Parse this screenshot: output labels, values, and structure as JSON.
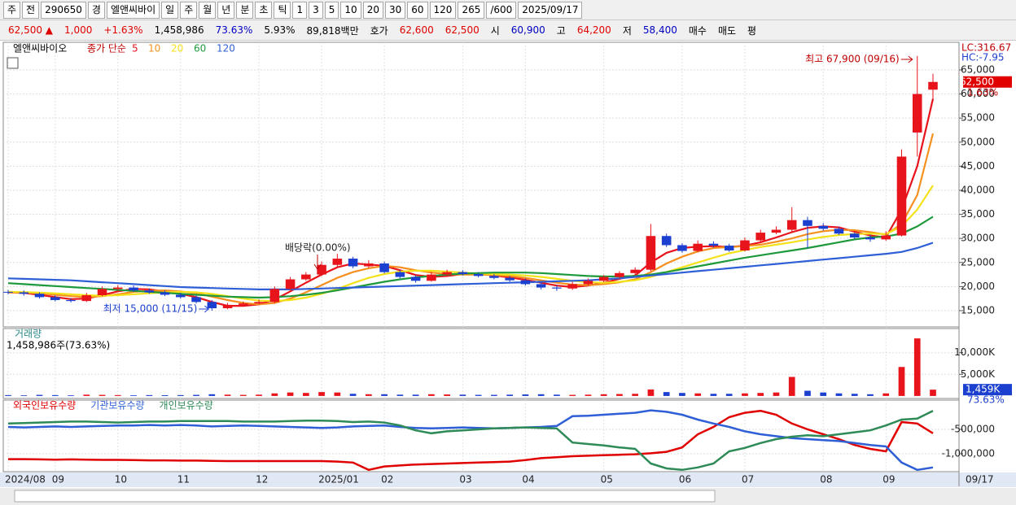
{
  "toolbar": [
    "주",
    "전",
    "290650",
    "경",
    "엘앤씨바이",
    "일",
    "주",
    "월",
    "년",
    "분",
    "초",
    "틱",
    "1",
    "3",
    "5",
    "10",
    "20",
    "30",
    "60",
    "120",
    "265",
    "/600",
    "2025/09/17"
  ],
  "info_bar": [
    {
      "text": "62,500 ▲",
      "color": "#e00000"
    },
    {
      "text": "1,000",
      "color": "#e00000"
    },
    {
      "text": "+1.63%",
      "color": "#e00000"
    },
    {
      "text": "1,458,986",
      "color": "#000000"
    },
    {
      "text": "73.63%",
      "color": "#0000c0"
    },
    {
      "text": "5.93%",
      "color": "#000000"
    },
    {
      "text": "89,818백만",
      "color": "#000000"
    },
    {
      "text": "호가",
      "color": "#000000"
    },
    {
      "text": "62,600",
      "color": "#e00000"
    },
    {
      "text": "62,500",
      "color": "#e00000"
    },
    {
      "text": "시",
      "color": "#000000"
    },
    {
      "text": "60,900",
      "color": "#0000c0"
    },
    {
      "text": "고",
      "color": "#000000"
    },
    {
      "text": "64,200",
      "color": "#e00000"
    },
    {
      "text": "저",
      "color": "#000000"
    },
    {
      "text": "58,400",
      "color": "#0000c0"
    },
    {
      "text": "매수",
      "color": "#000000"
    },
    {
      "text": "매도",
      "color": "#000000"
    },
    {
      "text": "평",
      "color": "#000000"
    }
  ],
  "chart_data": [
    {
      "type": "candlestick",
      "title": "엘앤씨바이오",
      "legend_title": "종가 단순",
      "up_color": "#e8141b",
      "down_color": "#1b3fcf",
      "open": [
        18900,
        18800,
        18500,
        17800,
        17200,
        17000,
        18200,
        19500,
        19800,
        19200,
        18800,
        18300,
        17800,
        16800,
        15500,
        16200,
        16500,
        16800,
        19500,
        21500,
        22500,
        24500,
        25800,
        24200,
        24800,
        23000,
        22000,
        21200,
        22500,
        23000,
        22600,
        22200,
        21800,
        21300,
        20500,
        19800,
        19600,
        20500,
        21200,
        22000,
        22800,
        23500,
        30500,
        28600,
        27400,
        28900,
        28500,
        27500,
        29600,
        31200,
        31800,
        33800,
        32600,
        32000,
        31000,
        30200,
        29800,
        30600,
        52000,
        60900
      ],
      "high": [
        19300,
        19200,
        18800,
        18200,
        17600,
        18700,
        20000,
        20300,
        20200,
        19600,
        19200,
        18700,
        18200,
        17200,
        16600,
        16900,
        17300,
        20000,
        22000,
        23000,
        25200,
        26800,
        26200,
        25500,
        25200,
        23400,
        22400,
        23000,
        23500,
        23400,
        23000,
        22600,
        22200,
        21700,
        20900,
        20300,
        21000,
        21700,
        22400,
        23200,
        24000,
        33000,
        31000,
        29000,
        29600,
        29400,
        28900,
        30200,
        31800,
        32500,
        36500,
        34500,
        33200,
        32400,
        31200,
        30800,
        31500,
        48500,
        67900,
        64200
      ],
      "low": [
        18400,
        18100,
        17500,
        16900,
        16700,
        16800,
        18000,
        19200,
        18900,
        18500,
        18000,
        17500,
        16500,
        15000,
        15300,
        15900,
        16300,
        16500,
        19200,
        21200,
        22200,
        24000,
        23800,
        23900,
        22700,
        21700,
        20800,
        21000,
        22200,
        22300,
        21900,
        21500,
        21000,
        20200,
        19400,
        19100,
        19300,
        20200,
        20900,
        21700,
        22500,
        23200,
        28200,
        27000,
        27100,
        28100,
        27200,
        27300,
        29200,
        30900,
        31400,
        28000,
        31600,
        30700,
        29900,
        29300,
        29500,
        30400,
        47000,
        58400
      ],
      "close": [
        18800,
        18500,
        17800,
        17200,
        17000,
        18200,
        19500,
        19800,
        19200,
        18800,
        18300,
        17800,
        16800,
        15500,
        16200,
        16500,
        16800,
        19500,
        21500,
        22500,
        24500,
        25800,
        24200,
        24800,
        23000,
        22000,
        21200,
        22500,
        23000,
        22600,
        22200,
        21800,
        21300,
        20500,
        19800,
        19600,
        20500,
        21200,
        22000,
        22800,
        23500,
        30500,
        28600,
        27400,
        28900,
        28500,
        27500,
        29600,
        31200,
        31800,
        33800,
        32600,
        32000,
        31000,
        30200,
        29800,
        30600,
        47000,
        60000,
        62500
      ],
      "series": [
        {
          "name": "5",
          "color": "#e8141b",
          "values": [
            18800,
            18700,
            18300,
            17800,
            17400,
            17500,
            18200,
            19000,
            19500,
            19400,
            19000,
            18500,
            17800,
            16800,
            16000,
            16000,
            16300,
            17300,
            19000,
            20800,
            22500,
            24000,
            24800,
            24600,
            24300,
            23400,
            22400,
            22000,
            22200,
            22600,
            22700,
            22300,
            21900,
            21400,
            20800,
            20200,
            19900,
            20200,
            20800,
            21600,
            22300,
            25000,
            27000,
            28000,
            28300,
            28400,
            28200,
            28500,
            29200,
            30200,
            31300,
            32200,
            32500,
            32300,
            31400,
            30600,
            30200,
            36000,
            45000,
            59000
          ]
        },
        {
          "name": "10",
          "color": "#f5901e",
          "values": [
            18800,
            18750,
            18600,
            18300,
            18000,
            17800,
            18000,
            18400,
            18900,
            19100,
            19200,
            19000,
            18600,
            17900,
            17200,
            16600,
            16300,
            16600,
            17500,
            18800,
            20300,
            21800,
            23000,
            23800,
            24300,
            24000,
            23400,
            22900,
            22600,
            22500,
            22500,
            22400,
            22200,
            21800,
            21300,
            20800,
            20400,
            20300,
            20500,
            20900,
            21500,
            23000,
            24800,
            26200,
            27300,
            28000,
            28200,
            28400,
            28700,
            29300,
            30000,
            30900,
            31500,
            31800,
            31700,
            31300,
            30800,
            33000,
            39000,
            51800
          ]
        },
        {
          "name": "20",
          "color": "#f3e21a",
          "values": [
            18900,
            18850,
            18750,
            18600,
            18400,
            18200,
            18100,
            18200,
            18400,
            18600,
            18800,
            18900,
            18800,
            18500,
            18000,
            17500,
            17100,
            17000,
            17200,
            17700,
            18500,
            19500,
            20700,
            21800,
            22600,
            23100,
            23300,
            23300,
            23100,
            22900,
            22700,
            22600,
            22500,
            22300,
            22000,
            21600,
            21200,
            20900,
            20800,
            21000,
            21300,
            22000,
            23000,
            24000,
            25000,
            26000,
            26900,
            27600,
            28200,
            28700,
            29200,
            29800,
            30300,
            30700,
            30900,
            31000,
            30900,
            32500,
            36000,
            41000
          ]
        },
        {
          "name": "60",
          "color": "#1e9a3c",
          "values": [
            20700,
            20500,
            20300,
            20100,
            19900,
            19700,
            19500,
            19300,
            19100,
            18900,
            18700,
            18500,
            18300,
            18100,
            17900,
            17800,
            17700,
            17800,
            18000,
            18300,
            18700,
            19200,
            19800,
            20400,
            21000,
            21500,
            21900,
            22200,
            22500,
            22700,
            22800,
            22900,
            22900,
            22900,
            22800,
            22600,
            22400,
            22200,
            22100,
            22100,
            22200,
            22500,
            23000,
            23600,
            24200,
            24800,
            25400,
            26000,
            26500,
            27000,
            27500,
            28000,
            28600,
            29200,
            29800,
            30200,
            30400,
            31000,
            32500,
            34500
          ]
        },
        {
          "name": "120",
          "color": "#2f5fd6",
          "values": [
            21700,
            21600,
            21500,
            21400,
            21300,
            21100,
            20900,
            20700,
            20500,
            20300,
            20100,
            19900,
            19800,
            19700,
            19600,
            19500,
            19400,
            19400,
            19400,
            19500,
            19600,
            19700,
            19800,
            19900,
            20000,
            20100,
            20200,
            20300,
            20400,
            20500,
            20600,
            20700,
            20800,
            20900,
            21000,
            21100,
            21200,
            21300,
            21500,
            21700,
            22000,
            22300,
            22600,
            22900,
            23200,
            23500,
            23800,
            24100,
            24400,
            24700,
            25000,
            25300,
            25600,
            25900,
            26200,
            26500,
            26800,
            27200,
            28000,
            29100
          ]
        }
      ],
      "ylim": [
        11620,
        70740
      ],
      "yticks": [
        {
          "value": 15000,
          "label": "15,000"
        },
        {
          "value": 20000,
          "label": "20,000"
        },
        {
          "value": 25000,
          "label": "25,000"
        },
        {
          "value": 30000,
          "label": "30,000"
        },
        {
          "value": 35000,
          "label": "35,000"
        },
        {
          "value": 40000,
          "label": "40,000"
        },
        {
          "value": 45000,
          "label": "45,000"
        },
        {
          "value": 50000,
          "label": "50,000"
        },
        {
          "value": 55000,
          "label": "55,000"
        },
        {
          "value": 60000,
          "label": "60,000"
        },
        {
          "value": 65000,
          "label": "65,000"
        }
      ],
      "grid": true,
      "high_annotation": "최고 67,900 (09/16)",
      "low_annotation": "최저 15,000 (11/15)",
      "dividend_annotation": "배당락(0.00%)",
      "lc_label": "LC:316.67",
      "hc_label": "HC:-7.95",
      "last_label": "62,500",
      "change_label": "1.63%"
    },
    {
      "type": "bar",
      "title": "거래량",
      "subtitle": "1,458,986주(73.63%)",
      "values": [
        200,
        150,
        250,
        200,
        150,
        300,
        250,
        200,
        150,
        200,
        180,
        200,
        250,
        400,
        300,
        250,
        300,
        600,
        800,
        700,
        900,
        800,
        500,
        400,
        400,
        300,
        300,
        400,
        350,
        300,
        250,
        250,
        300,
        350,
        400,
        300,
        250,
        300,
        400,
        450,
        500,
        1500,
        900,
        700,
        600,
        500,
        500,
        600,
        700,
        800,
        4400,
        1200,
        800,
        600,
        500,
        400,
        600,
        6700,
        13300,
        1459
      ],
      "ylim": [
        -580,
        15580
      ],
      "yticks": [
        {
          "value": 5000,
          "label": "5,000K"
        },
        {
          "value": 10000,
          "label": "10,000K"
        }
      ],
      "grid": true,
      "last_label": "1,459K",
      "ratio_label": "73.63%"
    },
    {
      "type": "line",
      "categories": [
        "2024/08",
        null,
        null,
        "09",
        null,
        null,
        null,
        "10",
        null,
        null,
        null,
        "11",
        null,
        null,
        null,
        null,
        "12",
        null,
        null,
        null,
        "2025/01",
        null,
        null,
        null,
        "02",
        null,
        null,
        null,
        null,
        "03",
        null,
        null,
        null,
        "04",
        null,
        null,
        null,
        null,
        "05",
        null,
        null,
        null,
        null,
        "06",
        null,
        null,
        null,
        "07",
        null,
        null,
        null,
        null,
        "08",
        null,
        null,
        null,
        "09",
        null,
        null,
        null
      ],
      "x_end_label": "09/17",
      "series": [
        {
          "name": "외국인보유수량",
          "color": "#e00000",
          "values": [
            -1110000,
            -1110000,
            -1115000,
            -1120000,
            -1115000,
            -1120000,
            -1125000,
            -1125000,
            -1130000,
            -1135000,
            -1135000,
            -1140000,
            -1140000,
            -1145000,
            -1150000,
            -1150000,
            -1150000,
            -1150000,
            -1150000,
            -1150000,
            -1150000,
            -1160000,
            -1180000,
            -1330000,
            -1260000,
            -1240000,
            -1220000,
            -1210000,
            -1200000,
            -1190000,
            -1180000,
            -1170000,
            -1160000,
            -1130000,
            -1090000,
            -1070000,
            -1050000,
            -1040000,
            -1030000,
            -1020000,
            -1010000,
            -990000,
            -960000,
            -870000,
            -600000,
            -450000,
            -250000,
            -160000,
            -120000,
            -200000,
            -380000,
            -500000,
            -600000,
            -700000,
            -820000,
            -900000,
            -950000,
            -350000,
            -380000,
            -580000
          ]
        },
        {
          "name": "기관보유수량",
          "color": "#2f5fd6",
          "values": [
            -450000,
            -460000,
            -450000,
            -440000,
            -450000,
            -440000,
            -430000,
            -420000,
            -420000,
            -410000,
            -420000,
            -410000,
            -420000,
            -440000,
            -430000,
            -420000,
            -430000,
            -440000,
            -450000,
            -460000,
            -470000,
            -460000,
            -440000,
            -430000,
            -420000,
            -450000,
            -470000,
            -480000,
            -470000,
            -460000,
            -470000,
            -480000,
            -470000,
            -460000,
            -450000,
            -430000,
            -230000,
            -220000,
            -200000,
            -180000,
            -160000,
            -110000,
            -140000,
            -200000,
            -300000,
            -380000,
            -450000,
            -540000,
            -600000,
            -640000,
            -680000,
            -700000,
            -720000,
            -740000,
            -780000,
            -820000,
            -850000,
            -1180000,
            -1330000,
            -1280000
          ]
        },
        {
          "name": "개인보유수량",
          "color": "#2e8b57",
          "values": [
            -380000,
            -370000,
            -360000,
            -350000,
            -340000,
            -340000,
            -350000,
            -360000,
            -350000,
            -340000,
            -340000,
            -330000,
            -330000,
            -330000,
            -330000,
            -340000,
            -340000,
            -340000,
            -330000,
            -320000,
            -320000,
            -330000,
            -350000,
            -340000,
            -360000,
            -420000,
            -520000,
            -580000,
            -540000,
            -520000,
            -500000,
            -480000,
            -470000,
            -460000,
            -470000,
            -480000,
            -770000,
            -800000,
            -830000,
            -870000,
            -900000,
            -1200000,
            -1300000,
            -1330000,
            -1280000,
            -1200000,
            -950000,
            -880000,
            -780000,
            -700000,
            -650000,
            -620000,
            -640000,
            -600000,
            -560000,
            -520000,
            -420000,
            -300000,
            -280000,
            -120000
          ]
        }
      ],
      "ylim": [
        -1367000,
        100000
      ],
      "yticks": [
        {
          "value": -500000,
          "label": "-500,000"
        },
        {
          "value": -1000000,
          "label": "-1,000,000"
        }
      ],
      "grid": true
    }
  ]
}
